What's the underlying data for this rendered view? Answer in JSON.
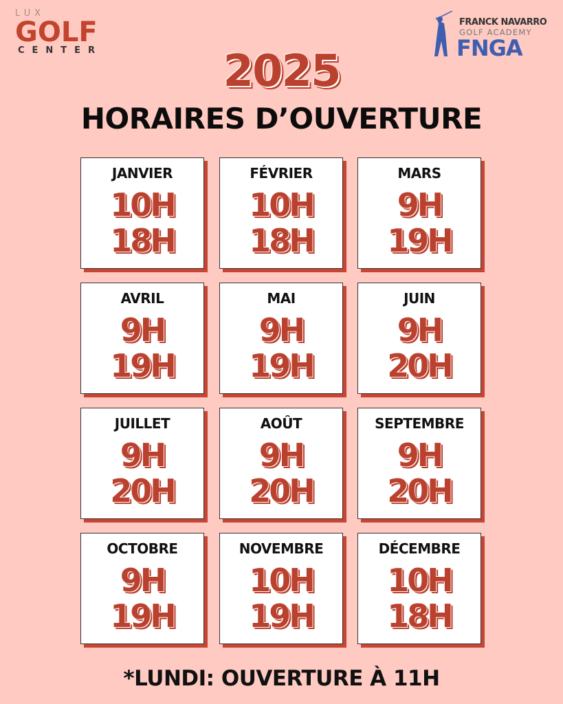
{
  "logo_left": {
    "top": "LUX",
    "middle": "GOLF",
    "bottom": "CENTER"
  },
  "logo_right": {
    "line1": "FRANCK NAVARRO",
    "line2": "GOLF ACADEMY",
    "line3": "FNGA"
  },
  "year": "2025",
  "title": "HORAIRES D’OUVERTURE",
  "months": [
    {
      "name": "JANVIER",
      "open": "10H",
      "close": "18H"
    },
    {
      "name": "FÉVRIER",
      "open": "10H",
      "close": "18H"
    },
    {
      "name": "MARS",
      "open": "9H",
      "close": "19H"
    },
    {
      "name": "AVRIL",
      "open": "9H",
      "close": "19H"
    },
    {
      "name": "MAI",
      "open": "9H",
      "close": "19H"
    },
    {
      "name": "JUIN",
      "open": "9H",
      "close": "20H"
    },
    {
      "name": "JUILLET",
      "open": "9H",
      "close": "20H"
    },
    {
      "name": "AOÛT",
      "open": "9H",
      "close": "20H"
    },
    {
      "name": "SEPTEMBRE",
      "open": "9H",
      "close": "20H"
    },
    {
      "name": "OCTOBRE",
      "open": "9H",
      "close": "19H"
    },
    {
      "name": "NOVEMBRE",
      "open": "10H",
      "close": "19H"
    },
    {
      "name": "DÉCEMBRE",
      "open": "10H",
      "close": "18H"
    }
  ],
  "footnote": "*LUNDI: OUVERTURE À 11H",
  "colors": {
    "background": "#fecac1",
    "accent": "#bb412f",
    "fnga_blue": "#3f5eb0"
  }
}
